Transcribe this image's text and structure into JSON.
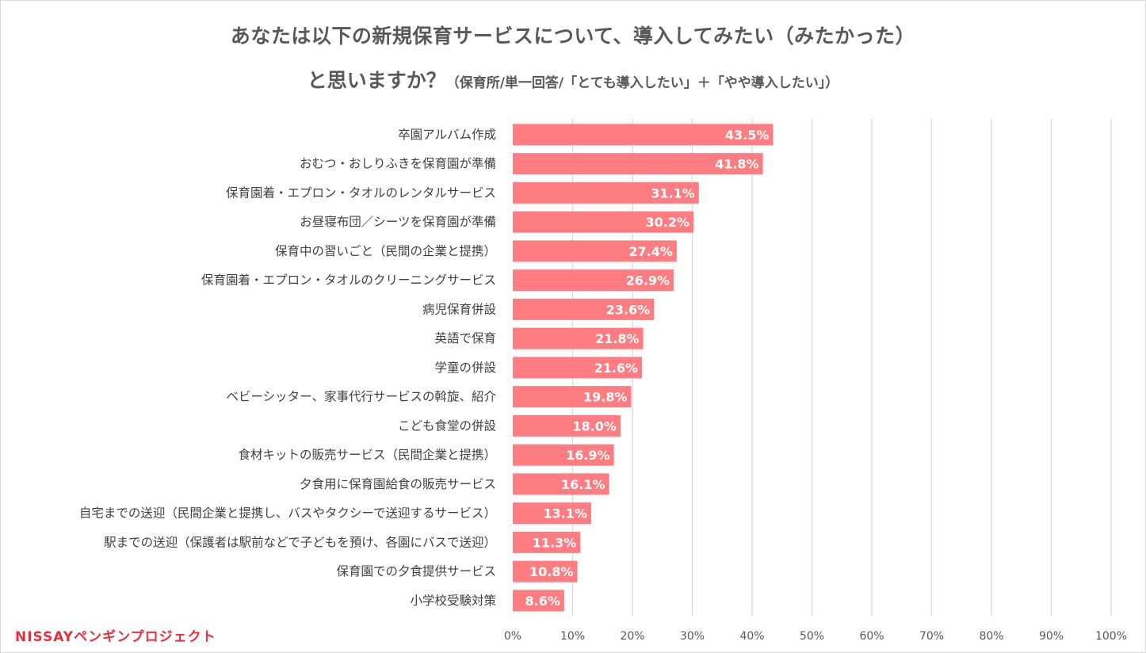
{
  "title": {
    "line1": "あなたは以下の新規保育サービスについて、導入してみたい（みたかった）",
    "line2_main": "と思いますか？",
    "line2_sub": "（保育所/単一回答/「とても導入したい」＋「やや導入したい」）"
  },
  "logo": {
    "text": "NISSAYペンギンプロジェクト"
  },
  "colors": {
    "bar": "#ff7c80",
    "grid": "#d9d9d9",
    "text": "#595959"
  },
  "chart_data": {
    "type": "bar",
    "orientation": "horizontal",
    "categories": [
      "卒園アルバム作成",
      "おむつ・おしりふきを保育園が準備",
      "保育園着・エプロン・タオルのレンタルサービス",
      "お昼寝布団／シーツを保育園が準備",
      "保育中の習いごと（民間の企業と提携）",
      "保育園着・エプロン・タオルのクリーニングサービス",
      "病児保育併設",
      "英語で保育",
      "学童の併設",
      "ベビーシッター、家事代行サービスの斡旋、紹介",
      "こども食堂の併設",
      "食材キットの販売サービス（民間企業と提携）",
      "夕食用に保育園給食の販売サービス",
      "自宅までの送迎（民間企業と提携し、バスやタクシーで送迎するサービス）",
      "駅までの送迎（保護者は駅前などで子どもを預け、各園にバスで送迎）",
      "保育園での夕食提供サービス",
      "小学校受験対策"
    ],
    "values": [
      43.5,
      41.8,
      31.1,
      30.2,
      27.4,
      26.9,
      23.6,
      21.8,
      21.6,
      19.8,
      18.0,
      16.9,
      16.1,
      13.1,
      11.3,
      10.8,
      8.6
    ],
    "value_labels": [
      "43.5%",
      "41.8%",
      "31.1%",
      "30.2%",
      "27.4%",
      "26.9%",
      "23.6%",
      "21.8%",
      "21.6%",
      "19.8%",
      "18.0%",
      "16.9%",
      "16.1%",
      "13.1%",
      "11.3%",
      "10.8%",
      "8.6%"
    ],
    "xlim": [
      0,
      100
    ],
    "xticks": [
      0,
      10,
      20,
      30,
      40,
      50,
      60,
      70,
      80,
      90,
      100
    ],
    "xtick_labels": [
      "0%",
      "10%",
      "20%",
      "30%",
      "40%",
      "50%",
      "60%",
      "70%",
      "80%",
      "90%",
      "100%"
    ],
    "grid": true,
    "legend": "none"
  }
}
